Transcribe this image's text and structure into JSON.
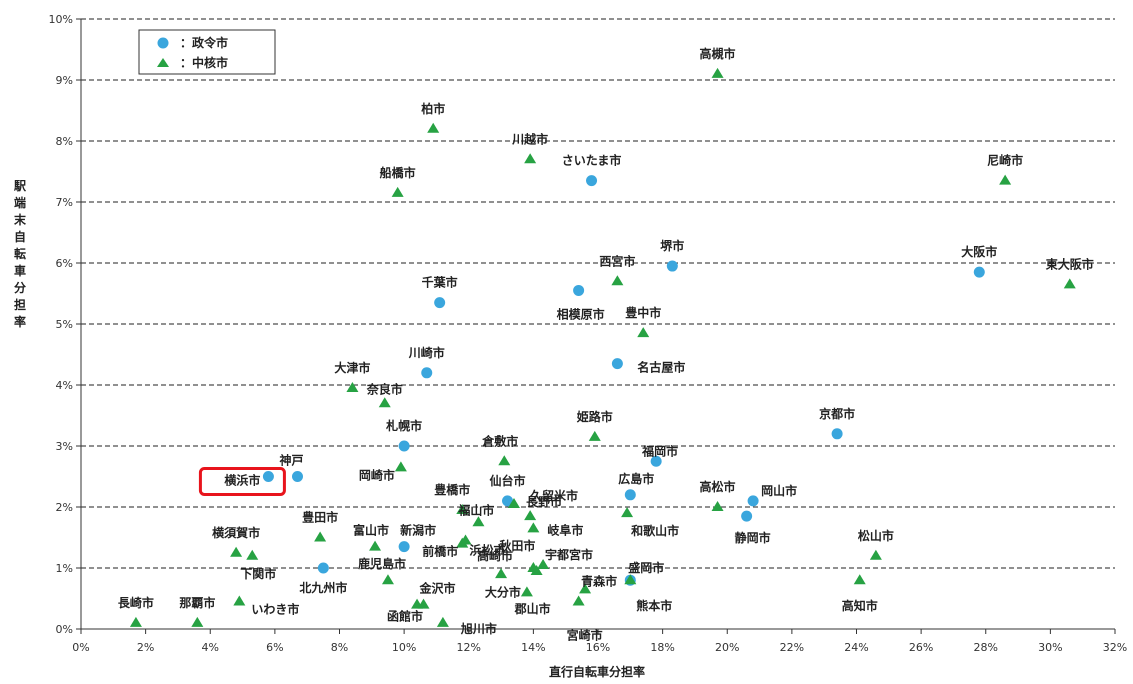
{
  "chart_data": {
    "type": "scatter",
    "title": "",
    "xlabel": "直行自転車分担率",
    "ylabel": "駅端末自転車分担率",
    "xlim": [
      0,
      32
    ],
    "ylim": [
      0,
      10
    ],
    "x_ticks": [
      "0%",
      "2%",
      "4%",
      "6%",
      "8%",
      "10%",
      "12%",
      "14%",
      "16%",
      "18%",
      "20%",
      "22%",
      "24%",
      "26%",
      "28%",
      "30%",
      "32%"
    ],
    "y_ticks": [
      "0%",
      "1%",
      "2%",
      "3%",
      "4%",
      "5%",
      "6%",
      "7%",
      "8%",
      "9%",
      "10%"
    ],
    "grid": "horizontal dashed",
    "legend_position": "top-left",
    "colors": {
      "seirei": "#3aa6dd",
      "chukaku": "#27a243",
      "highlight": "#e8141c"
    },
    "highlight_point": "横浜市",
    "series": [
      {
        "name": "：政令市",
        "marker": "circle",
        "points": [
          {
            "label": "横浜市",
            "x": 5.8,
            "y": 2.5
          },
          {
            "label": "神戸",
            "x": 6.7,
            "y": 2.5
          },
          {
            "label": "北九州市",
            "x": 7.5,
            "y": 1.0
          },
          {
            "label": "札幌市",
            "x": 10.0,
            "y": 3.0
          },
          {
            "label": "新潟市",
            "x": 10.0,
            "y": 1.35
          },
          {
            "label": "川崎市",
            "x": 10.7,
            "y": 4.2
          },
          {
            "label": "千葉市",
            "x": 11.1,
            "y": 5.35
          },
          {
            "label": "仙台市",
            "x": 13.2,
            "y": 2.1
          },
          {
            "label": "相模原市",
            "x": 15.4,
            "y": 5.55
          },
          {
            "label": "さいたま市",
            "x": 15.8,
            "y": 7.35
          },
          {
            "label": "名古屋市",
            "x": 16.6,
            "y": 4.35
          },
          {
            "label": "広島市",
            "x": 17.0,
            "y": 2.2
          },
          {
            "label": "盛岡市",
            "x": 17.0,
            "y": 0.8
          },
          {
            "label": "福岡市",
            "x": 17.8,
            "y": 2.75
          },
          {
            "label": "堺市",
            "x": 18.3,
            "y": 5.95
          },
          {
            "label": "静岡市",
            "x": 20.6,
            "y": 1.85
          },
          {
            "label": "岡山市",
            "x": 20.8,
            "y": 2.1
          },
          {
            "label": "京都市",
            "x": 23.4,
            "y": 3.2
          },
          {
            "label": "大阪市",
            "x": 27.8,
            "y": 5.85
          }
        ]
      },
      {
        "name": "：中核市",
        "marker": "triangle",
        "points": [
          {
            "label": "長崎市",
            "x": 1.7,
            "y": 0.1
          },
          {
            "label": "那覇市",
            "x": 3.6,
            "y": 0.1
          },
          {
            "label": "横須賀市",
            "x": 4.8,
            "y": 1.25
          },
          {
            "label": "いわき市",
            "x": 4.9,
            "y": 0.45
          },
          {
            "label": "下関市",
            "x": 5.3,
            "y": 1.2
          },
          {
            "label": "豊田市",
            "x": 7.4,
            "y": 1.5
          },
          {
            "label": "大津市",
            "x": 8.4,
            "y": 3.95
          },
          {
            "label": "富山市",
            "x": 9.1,
            "y": 1.35
          },
          {
            "label": "奈良市",
            "x": 9.4,
            "y": 3.7
          },
          {
            "label": "鹿児島市",
            "x": 9.5,
            "y": 0.8
          },
          {
            "label": "船橋市",
            "x": 9.8,
            "y": 7.15
          },
          {
            "label": "岡崎市",
            "x": 9.9,
            "y": 2.65
          },
          {
            "label": "函館市",
            "x": 10.4,
            "y": 0.4
          },
          {
            "label": "金沢市",
            "x": 10.6,
            "y": 0.4
          },
          {
            "label": "柏市",
            "x": 10.9,
            "y": 8.2
          },
          {
            "label": "旭川市",
            "x": 11.2,
            "y": 0.1
          },
          {
            "label": "前橋市",
            "x": 11.8,
            "y": 1.4
          },
          {
            "label": "浜松市",
            "x": 11.9,
            "y": 1.45
          },
          {
            "label": "豊橋市",
            "x": 11.8,
            "y": 1.95
          },
          {
            "label": "福山市",
            "x": 12.3,
            "y": 1.75
          },
          {
            "label": "高崎市",
            "x": 13.0,
            "y": 0.9
          },
          {
            "label": "倉敷市",
            "x": 13.1,
            "y": 2.75
          },
          {
            "label": "久留米市",
            "x": 13.4,
            "y": 2.05
          },
          {
            "label": "大分市",
            "x": 13.8,
            "y": 0.6
          },
          {
            "label": "川越市",
            "x": 13.9,
            "y": 7.7
          },
          {
            "label": "長野市",
            "x": 13.9,
            "y": 1.85
          },
          {
            "label": "岐阜市",
            "x": 14.0,
            "y": 1.65
          },
          {
            "label": "秋田市",
            "x": 14.0,
            "y": 1.0
          },
          {
            "label": "郡山市",
            "x": 14.1,
            "y": 0.95
          },
          {
            "label": "宇都宮市",
            "x": 14.3,
            "y": 1.05
          },
          {
            "label": "宮崎市",
            "x": 15.4,
            "y": 0.45
          },
          {
            "label": "青森市",
            "x": 15.6,
            "y": 0.65
          },
          {
            "label": "姫路市",
            "x": 15.9,
            "y": 3.15
          },
          {
            "label": "西宮市",
            "x": 16.6,
            "y": 5.7
          },
          {
            "label": "和歌山市",
            "x": 16.9,
            "y": 1.9
          },
          {
            "label": "熊本市",
            "x": 17.0,
            "y": 0.8
          },
          {
            "label": "豊中市",
            "x": 17.4,
            "y": 4.85
          },
          {
            "label": "高松市",
            "x": 19.7,
            "y": 2.0
          },
          {
            "label": "高槻市",
            "x": 19.7,
            "y": 9.1
          },
          {
            "label": "高知市",
            "x": 24.1,
            "y": 0.8
          },
          {
            "label": "松山市",
            "x": 24.6,
            "y": 1.2
          },
          {
            "label": "尼崎市",
            "x": 28.6,
            "y": 7.35
          },
          {
            "label": "東大阪市",
            "x": 30.6,
            "y": 5.65
          }
        ]
      }
    ]
  }
}
